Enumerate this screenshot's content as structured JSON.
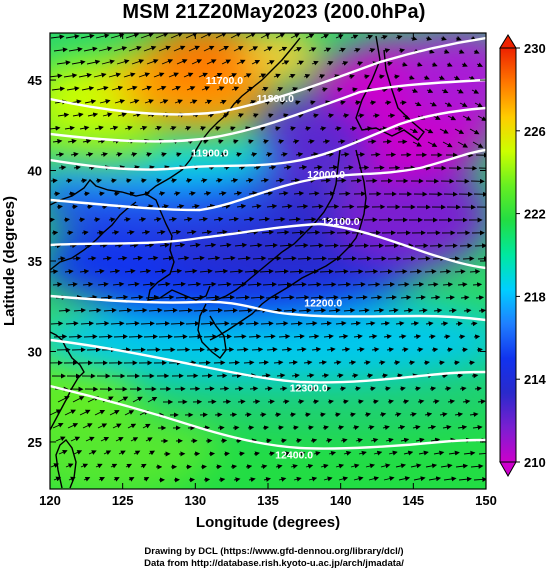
{
  "title": "MSM 21Z20May2023 (200.0hPa)",
  "xlabel": "Longitude (degrees)",
  "ylabel": "Latitude  (degrees)",
  "credits": {
    "line1": "Drawing by DCL (https://www.gfd-dennou.org/library/dcl/)",
    "line2": "Data from http://database.rish.kyoto-u.ac.jp/arch/jmadata/"
  },
  "map": {
    "lon_range": [
      120,
      150
    ],
    "lat_range": [
      22.4,
      47.6
    ],
    "lon_ticks": [
      "120",
      "125",
      "130",
      "135",
      "140",
      "145",
      "150"
    ],
    "lat_ticks": [
      "25",
      "30",
      "35",
      "40",
      "45"
    ],
    "contour_line_color": "#ffffff",
    "coastline_color": "#000000",
    "wind_vector_color": "#000000"
  },
  "colorbar": {
    "min": 210,
    "max": 230,
    "tick_labels": [
      "230",
      "226",
      "222",
      "218",
      "214",
      "210"
    ],
    "colors": [
      "#cc00cc",
      "#7a1fd1",
      "#2a2acc",
      "#1133ee",
      "#1f7fff",
      "#00cfff",
      "#00e8a0",
      "#22dd44",
      "#66ee22",
      "#ccff00",
      "#ffcc00",
      "#ff7700",
      "#ee2200"
    ]
  },
  "contours": [
    {
      "label": "11700.0",
      "lon": 132.0,
      "lat": 45.0
    },
    {
      "label": "11800.0",
      "lon": 135.5,
      "lat": 44.0
    },
    {
      "label": "11900.0",
      "lon": 131.0,
      "lat": 41.0
    },
    {
      "label": "12000.0",
      "lon": 139.0,
      "lat": 39.8
    },
    {
      "label": "12100.0",
      "lon": 140.0,
      "lat": 37.2
    },
    {
      "label": "12200.0",
      "lon": 138.8,
      "lat": 32.7
    },
    {
      "label": "12300.0",
      "lon": 137.8,
      "lat": 28.0
    },
    {
      "label": "12400.0",
      "lon": 136.8,
      "lat": 24.3
    }
  ]
}
